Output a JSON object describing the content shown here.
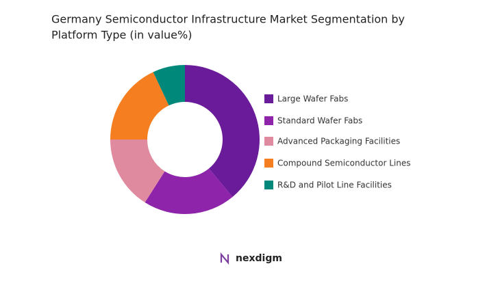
{
  "chart_data": {
    "type": "donut",
    "title_lines": [
      "Germany Semiconductor Infrastructure Market Segmentation by",
      "Platform Type (in value%)"
    ],
    "categories": [
      "Large Wafer Fabs",
      "Standard Wafer Fabs",
      "Advanced Packaging Facilities",
      "Compound Semiconductor Lines",
      "R&D and Pilot Line Facilities"
    ],
    "values": [
      39,
      20,
      16,
      18,
      7
    ],
    "colors": [
      "#6a1b9a",
      "#8e24aa",
      "#e08aa0",
      "#f57f20",
      "#00897b"
    ],
    "legend": "right"
  },
  "footer_logo": "nexdigm"
}
